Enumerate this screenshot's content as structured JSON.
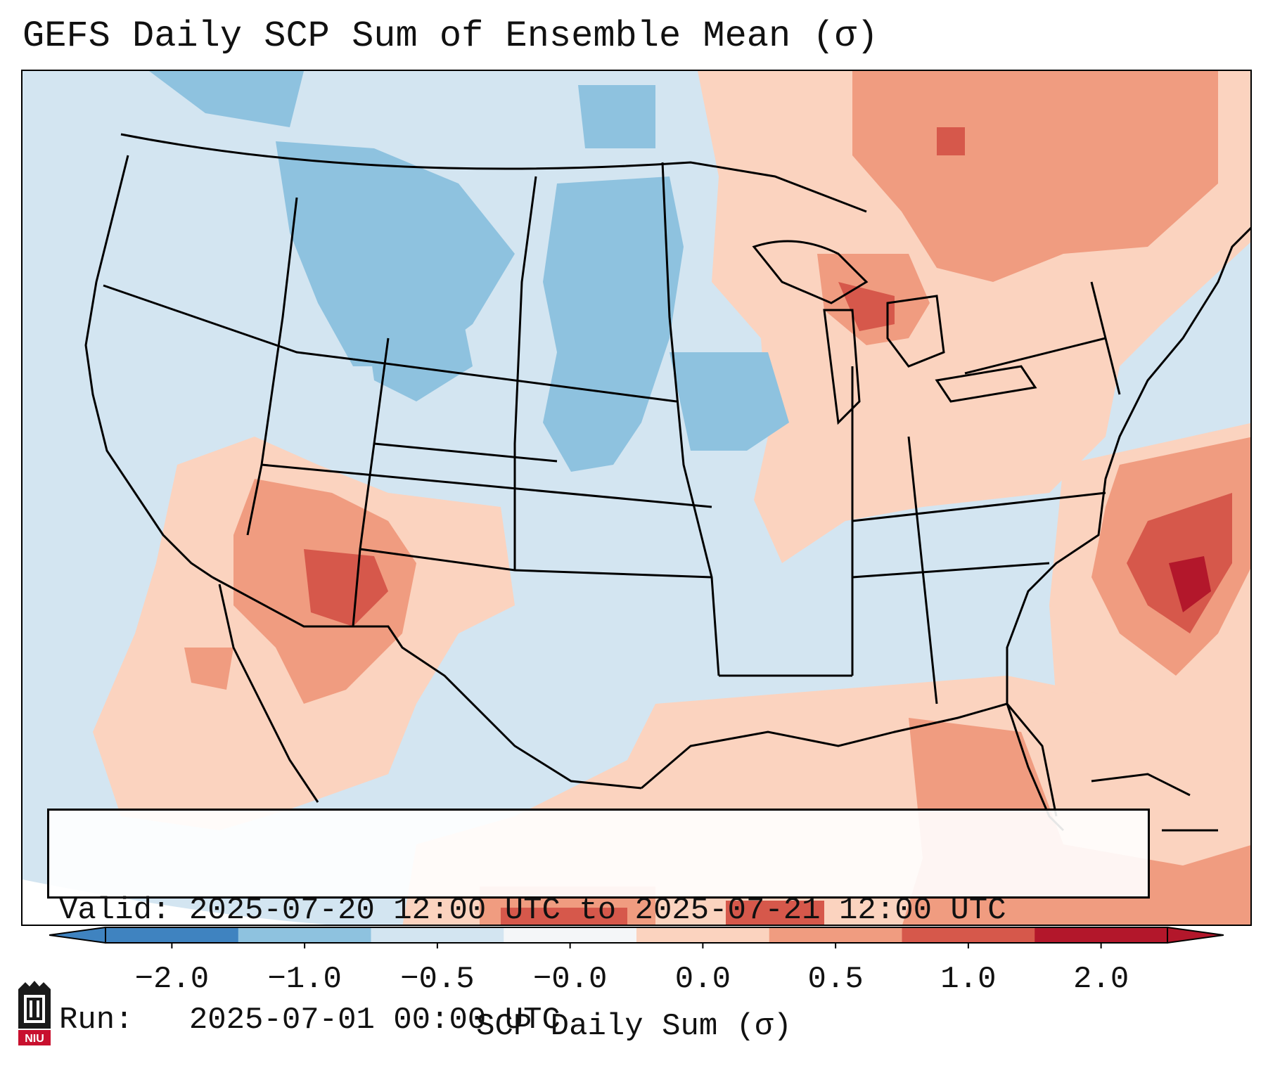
{
  "title": "GEFS Daily SCP Sum of Ensemble Mean (σ)",
  "valid_line": "Valid: 2025-07-20 12:00 UTC to 2025-07-21 12:00 UTC",
  "run_line": "Run:   2025-07-01 00:00 UTC",
  "colorbar": {
    "label": "SCP Daily Sum (σ)",
    "ticks": [
      "−2.0",
      "−1.0",
      "−0.5",
      "−0.0",
      "0.0",
      "0.5",
      "1.0",
      "2.0"
    ],
    "colors": [
      "#3f83c0",
      "#8ec2df",
      "#d3e5f1",
      "#f4f6f8",
      "#fbd3bf",
      "#f09c80",
      "#d6584b",
      "#b3172b"
    ]
  },
  "logo_text": "NIU",
  "legend_colors": {
    "background": "#d3e5f1",
    "blue_medium": "#8ec2df",
    "light_red": "#fbd3bf",
    "medium_red": "#f09c80",
    "dark_red": "#d6584b",
    "darkest_red": "#b3172b"
  }
}
